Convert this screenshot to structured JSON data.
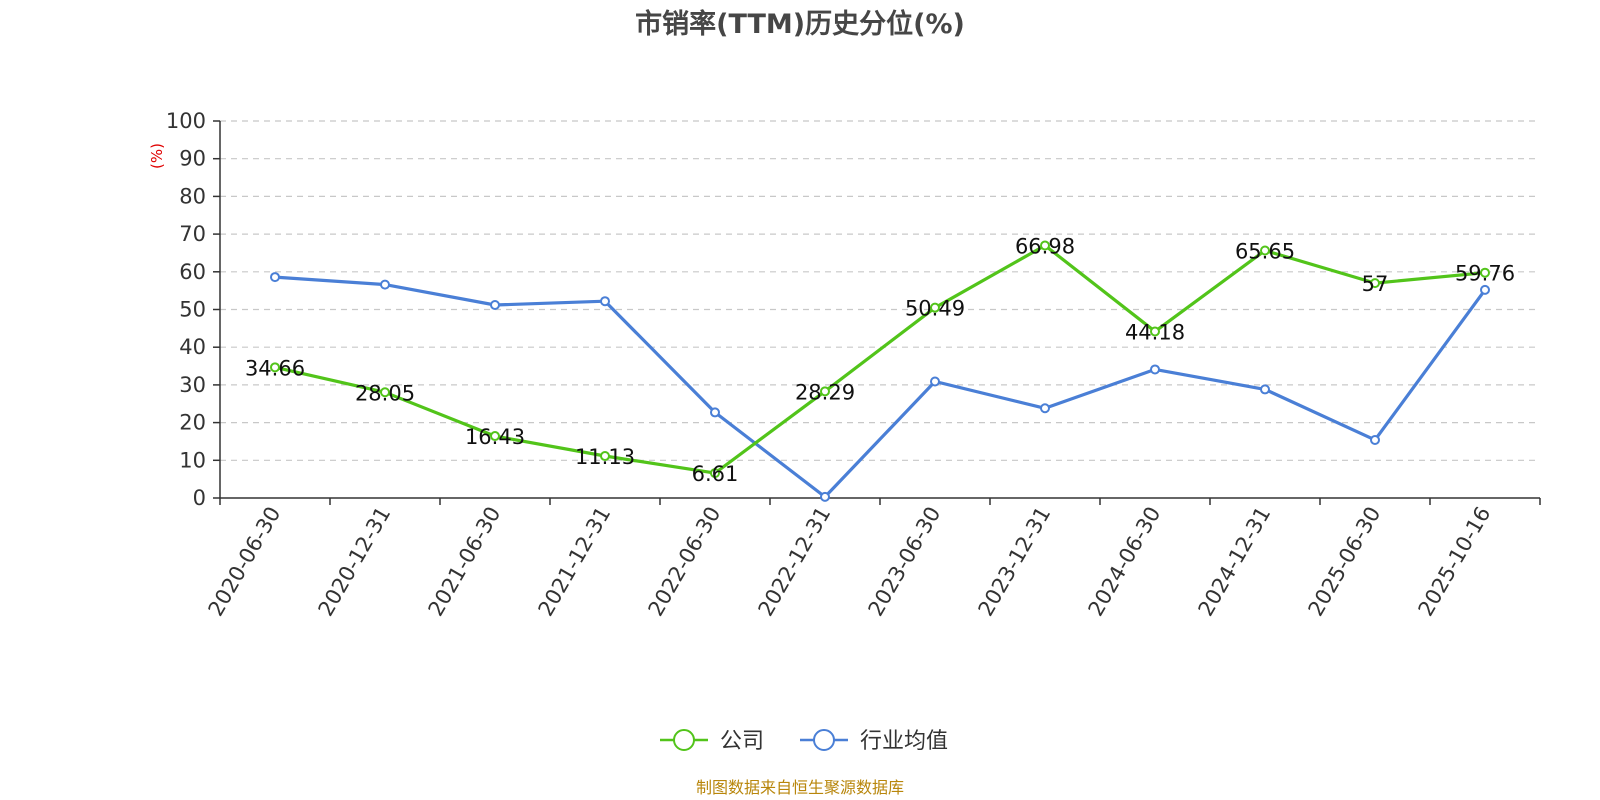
{
  "chart_data": {
    "type": "line",
    "title": "市销率(TTM)历史分位(%)",
    "ylabel": "(%)",
    "xlabel": "",
    "ylim": [
      0,
      100
    ],
    "yticks": [
      0,
      10,
      20,
      30,
      40,
      50,
      60,
      70,
      80,
      90,
      100
    ],
    "grid": true,
    "legend_position": "bottom-center",
    "categories": [
      "2020-06-30",
      "2020-12-31",
      "2021-06-30",
      "2021-12-31",
      "2022-06-30",
      "2022-12-31",
      "2023-06-30",
      "2023-12-31",
      "2024-06-30",
      "2024-12-31",
      "2025-06-30",
      "2025-10-16"
    ],
    "series": [
      {
        "name": "公司",
        "color": "#52c41a",
        "values": [
          34.66,
          28.05,
          16.43,
          11.13,
          6.61,
          28.29,
          50.49,
          66.98,
          44.18,
          65.65,
          57,
          59.76
        ],
        "labels": [
          "34.66",
          "28.05",
          "16.43",
          "11.13",
          "6.61",
          "28.29",
          "50.49",
          "66.98",
          "44.18",
          "65.65",
          "57",
          "59.76"
        ]
      },
      {
        "name": "行业均值",
        "color": "#4a7fd6",
        "values": [
          58.6,
          56.6,
          51.2,
          52.2,
          22.7,
          0.3,
          30.9,
          23.8,
          34.1,
          28.8,
          15.4,
          55.2
        ]
      }
    ],
    "source": "制图数据来自恒生聚源数据库"
  }
}
